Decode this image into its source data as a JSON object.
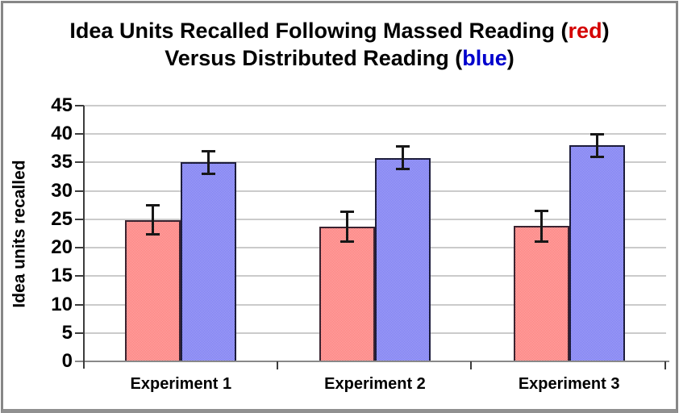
{
  "title": {
    "line1_pre": "Idea Units Recalled Following Massed Reading (",
    "line1_accent": "red",
    "line1_post": ")",
    "line2_pre": "Versus Distributed Reading (",
    "line2_accent": "blue",
    "line2_post": ")",
    "accent1_color": "#d40000",
    "accent2_color": "#0000cd"
  },
  "chart_data": {
    "type": "bar",
    "title": "Idea Units Recalled Following Massed Reading (red) Versus Distributed Reading (blue)",
    "xlabel": "",
    "ylabel": "Idea units recalled",
    "categories": [
      "Experiment 1",
      "Experiment 2",
      "Experiment 3"
    ],
    "series": [
      {
        "name": "Massed Reading (red)",
        "values": [
          24.9,
          23.7,
          23.8
        ],
        "errors": [
          2.8,
          2.9,
          2.9
        ],
        "fill": "#ff7676",
        "fill2": "#fcb0ac",
        "border": "#3a2330"
      },
      {
        "name": "Distributed Reading (blue)",
        "values": [
          35.0,
          35.8,
          38.0
        ],
        "errors": [
          2.2,
          2.2,
          2.2
        ],
        "fill": "#7676f8",
        "fill2": "#a9a9f0",
        "border": "#1d1d3c"
      }
    ],
    "yticks": [
      0,
      5,
      10,
      15,
      20,
      25,
      30,
      35,
      40,
      45
    ],
    "ylim": [
      0,
      45
    ],
    "grid": true,
    "legend_position": "encoded-in-title-colors",
    "error_bars": true,
    "colors": {
      "grid-color": "#cbcbcb",
      "baseline-color": "#898989",
      "axis-color": "#3c3c3c",
      "error-color": "#171717"
    }
  }
}
